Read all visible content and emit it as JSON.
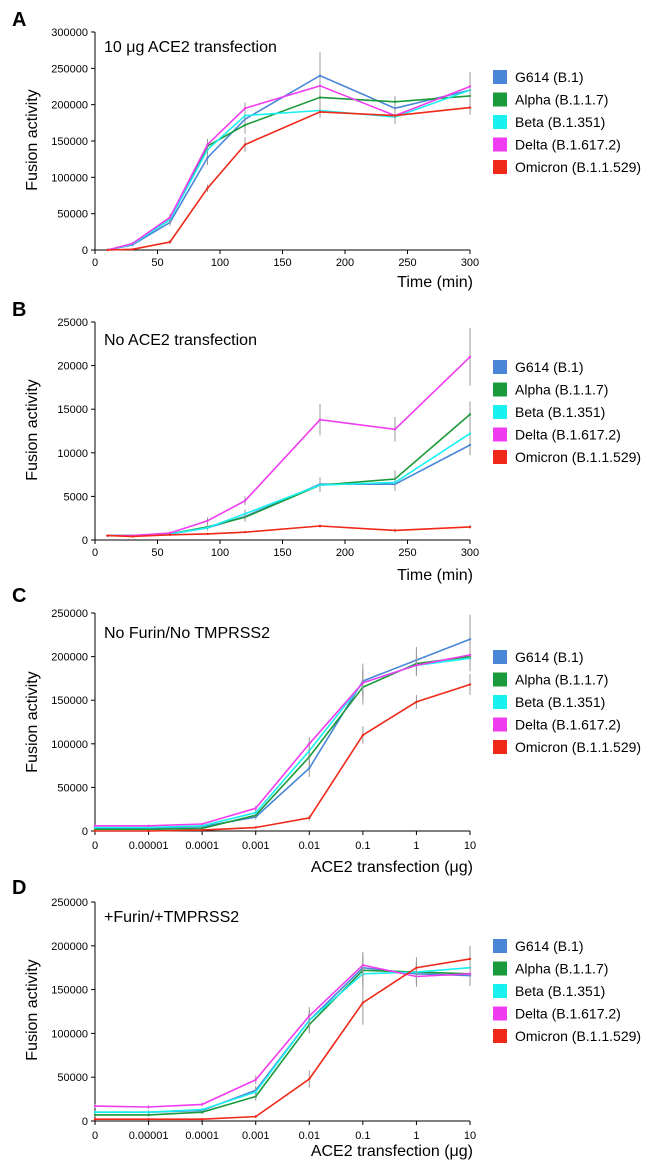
{
  "colors": {
    "G614 (B.1)": "#4a86d8",
    "Alpha (B.1.1.7)": "#1a9a3a",
    "Beta (B.1.351)": "#19f0f0",
    "Delta (B.1.617.2)": "#f03cf0",
    "Omicron (B.1.1.529)": "#f02818"
  },
  "chart_data": [
    {
      "type": "line",
      "panel_label": "A",
      "title": "10 μg ACE2 transfection",
      "xlabel": "Time (min)",
      "ylabel": "Fusion activity",
      "x": [
        10,
        30,
        60,
        90,
        120,
        180,
        240,
        300
      ],
      "xlim": [
        0,
        300
      ],
      "ylim": [
        0,
        300000
      ],
      "xticks": [
        "0",
        "50",
        "100",
        "150",
        "200",
        "250",
        "300"
      ],
      "yticks": [
        "0",
        "50000",
        "100000",
        "150000",
        "200000",
        "250000",
        "300000"
      ],
      "legend": "right",
      "series": [
        {
          "name": "G614 (B.1)",
          "values": [
            0,
            7000,
            38000,
            127000,
            180000,
            240000,
            195000,
            220000
          ],
          "err": [
            0,
            2000,
            5000,
            10000,
            15000,
            32000,
            12000,
            25000
          ]
        },
        {
          "name": "Alpha (B.1.1.7)",
          "values": [
            0,
            8000,
            42000,
            143000,
            172000,
            210000,
            204000,
            212000
          ],
          "err": [
            0,
            2000,
            5000,
            8000,
            12000,
            12000,
            8000,
            10000
          ]
        },
        {
          "name": "Beta (B.1.351)",
          "values": [
            0,
            8000,
            42000,
            138000,
            185000,
            192000,
            183000,
            220000
          ],
          "err": [
            0,
            2000,
            5000,
            8000,
            10000,
            10000,
            10000,
            10000
          ]
        },
        {
          "name": "Delta (B.1.617.2)",
          "values": [
            0,
            9000,
            45000,
            145000,
            195000,
            226000,
            185000,
            225000
          ],
          "err": [
            0,
            2000,
            5000,
            8000,
            8000,
            12000,
            10000,
            15000
          ]
        },
        {
          "name": "Omicron (B.1.1.529)",
          "values": [
            0,
            1000,
            11000,
            85000,
            145000,
            190000,
            185000,
            196000
          ],
          "err": [
            0,
            1000,
            3000,
            5000,
            10000,
            8000,
            8000,
            10000
          ]
        }
      ]
    },
    {
      "type": "line",
      "panel_label": "B",
      "title": "No ACE2 transfection",
      "xlabel": "Time (min)",
      "ylabel": "Fusion activity",
      "x": [
        10,
        30,
        60,
        90,
        120,
        180,
        240,
        300
      ],
      "xlim": [
        0,
        300
      ],
      "ylim": [
        0,
        25000
      ],
      "xticks": [
        "0",
        "50",
        "100",
        "150",
        "200",
        "250",
        "300"
      ],
      "yticks": [
        "0",
        "5000",
        "10000",
        "15000",
        "20000",
        "25000"
      ],
      "legend": "right",
      "series": [
        {
          "name": "G614 (B.1)",
          "values": [
            500,
            500,
            700,
            1400,
            2700,
            6400,
            6400,
            10900
          ],
          "err": [
            0,
            100,
            200,
            300,
            500,
            800,
            800,
            1200
          ]
        },
        {
          "name": "Alpha (B.1.1.7)",
          "values": [
            500,
            500,
            700,
            1500,
            2600,
            6300,
            7000,
            14400
          ],
          "err": [
            0,
            100,
            200,
            300,
            500,
            800,
            1000,
            1500
          ]
        },
        {
          "name": "Beta (B.1.351)",
          "values": [
            500,
            500,
            700,
            1400,
            3000,
            6300,
            6600,
            12200
          ],
          "err": [
            0,
            100,
            200,
            300,
            500,
            800,
            800,
            1200
          ]
        },
        {
          "name": "Delta (B.1.617.2)",
          "values": [
            500,
            500,
            800,
            2200,
            4500,
            13800,
            12700,
            21000
          ],
          "err": [
            0,
            100,
            200,
            400,
            500,
            1800,
            1400,
            3300
          ]
        },
        {
          "name": "Omicron (B.1.1.529)",
          "values": [
            500,
            400,
            600,
            700,
            900,
            1600,
            1100,
            1500
          ],
          "err": [
            0,
            100,
            100,
            100,
            100,
            200,
            200,
            200
          ]
        }
      ]
    },
    {
      "type": "line",
      "panel_label": "C",
      "title": "No Furin/No TMPRSS2",
      "xlabel": "ACE2 transfection (μg)",
      "ylabel": "Fusion activity",
      "x": [
        0,
        1e-05,
        0.0001,
        0.001,
        0.01,
        0.1,
        1,
        5
      ],
      "xlim": [
        0,
        10
      ],
      "ylim": [
        0,
        250000
      ],
      "xticks": [
        "0",
        "0.00001",
        "0.0001",
        "0.001",
        "0.01",
        "0.1",
        "1",
        "10"
      ],
      "yticks": [
        "0",
        "50000",
        "100000",
        "150000",
        "200000",
        "250000"
      ],
      "legend": "right",
      "series": [
        {
          "name": "G614 (B.1)",
          "values": [
            3000,
            3000,
            5000,
            16000,
            72000,
            172000,
            196000,
            220000
          ],
          "err": [
            1000,
            1000,
            1000,
            3000,
            10000,
            20000,
            15000,
            28000
          ]
        },
        {
          "name": "Alpha (B.1.1.7)",
          "values": [
            2000,
            2000,
            3000,
            18000,
            85000,
            165000,
            192000,
            200000
          ],
          "err": [
            1000,
            1000,
            1000,
            3000,
            10000,
            20000,
            12000,
            15000
          ]
        },
        {
          "name": "Beta (B.1.351)",
          "values": [
            4000,
            4000,
            6000,
            21000,
            92000,
            170000,
            190000,
            198000
          ],
          "err": [
            1000,
            1000,
            1000,
            3000,
            10000,
            15000,
            12000,
            15000
          ]
        },
        {
          "name": "Delta (B.1.617.2)",
          "values": [
            6000,
            6000,
            8000,
            26000,
            100000,
            170000,
            190000,
            202000
          ],
          "err": [
            1000,
            1000,
            1000,
            3000,
            8000,
            15000,
            12000,
            15000
          ]
        },
        {
          "name": "Omicron (B.1.1.529)",
          "values": [
            0,
            0,
            1000,
            4000,
            15000,
            110000,
            148000,
            168000
          ],
          "err": [
            0,
            0,
            500,
            1000,
            3000,
            10000,
            8000,
            12000
          ]
        }
      ]
    },
    {
      "type": "line",
      "panel_label": "D",
      "title": "+Furin/+TMPRSS2",
      "xlabel": "ACE2 transfection (μg)",
      "ylabel": "Fusion activity",
      "x": [
        0,
        1e-05,
        0.0001,
        0.001,
        0.01,
        0.1,
        1,
        5
      ],
      "xlim": [
        0,
        10
      ],
      "ylim": [
        0,
        250000
      ],
      "xticks": [
        "0",
        "0.00001",
        "0.0001",
        "0.001",
        "0.01",
        "0.1",
        "1",
        "10"
      ],
      "yticks": [
        "0",
        "50000",
        "100000",
        "150000",
        "200000",
        "250000"
      ],
      "legend": "right",
      "series": [
        {
          "name": "G614 (B.1)",
          "values": [
            10000,
            10000,
            12000,
            35000,
            115000,
            175000,
            168000,
            166000
          ],
          "err": [
            2000,
            2000,
            2000,
            5000,
            10000,
            15000,
            12000,
            12000
          ]
        },
        {
          "name": "Alpha (B.1.1.7)",
          "values": [
            7000,
            7000,
            10000,
            28000,
            110000,
            172000,
            170000,
            168000
          ],
          "err": [
            2000,
            2000,
            2000,
            5000,
            10000,
            15000,
            12000,
            12000
          ]
        },
        {
          "name": "Beta (B.1.351)",
          "values": [
            10000,
            10000,
            13000,
            33000,
            115000,
            168000,
            170000,
            175000
          ],
          "err": [
            2000,
            2000,
            2000,
            5000,
            10000,
            15000,
            12000,
            12000
          ]
        },
        {
          "name": "Delta (B.1.617.2)",
          "values": [
            17000,
            16000,
            19000,
            47000,
            120000,
            178000,
            165000,
            168000
          ],
          "err": [
            2000,
            2000,
            2000,
            5000,
            10000,
            15000,
            12000,
            12000
          ]
        },
        {
          "name": "Omicron (B.1.1.529)",
          "values": [
            2000,
            2000,
            2000,
            5000,
            48000,
            135000,
            175000,
            185000
          ],
          "err": [
            1000,
            1000,
            1000,
            2000,
            10000,
            25000,
            12000,
            15000
          ]
        }
      ]
    }
  ]
}
